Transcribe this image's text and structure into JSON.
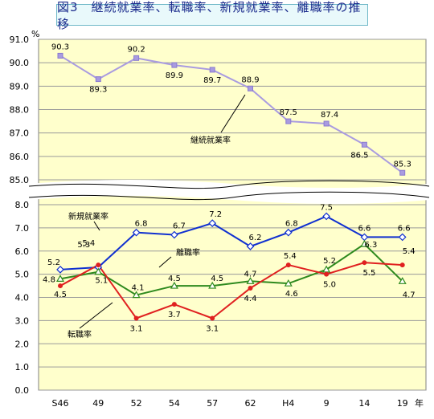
{
  "title": "図3　継続就業率、転職率、新規就業率、離職率の推移",
  "chart_data": {
    "type": "line",
    "categories": [
      "S46",
      "49",
      "52",
      "54",
      "57",
      "62",
      "H4",
      "9",
      "14",
      "19"
    ],
    "x_unit": "年",
    "y_unit": "%",
    "y_axis_break": [
      8.0,
      85.0
    ],
    "yticks_lower": [
      "0.0",
      "1.0",
      "2.0",
      "3.0",
      "4.0",
      "5.0",
      "6.0",
      "7.0",
      "8.0"
    ],
    "yticks_upper": [
      "85.0",
      "86.0",
      "87.0",
      "88.0",
      "89.0",
      "90.0",
      "91.0"
    ],
    "ylim_lower": [
      0,
      8
    ],
    "ylim_upper": [
      85,
      91
    ],
    "grid": true,
    "series": [
      {
        "name": "継続就業率",
        "color": "#a99be0",
        "marker": "square",
        "axis": "upper",
        "values": [
          90.3,
          89.3,
          90.2,
          89.9,
          89.7,
          88.9,
          87.5,
          87.4,
          86.5,
          85.3
        ]
      },
      {
        "name": "新規就業率",
        "color": "#1030d0",
        "marker": "diamond",
        "axis": "lower",
        "values": [
          5.2,
          5.3,
          6.8,
          6.7,
          7.2,
          6.2,
          6.8,
          7.5,
          6.6,
          6.6
        ]
      },
      {
        "name": "離職率",
        "color": "#2e8a1e",
        "marker": "triangle",
        "axis": "lower",
        "values": [
          4.8,
          5.1,
          4.1,
          4.5,
          4.5,
          4.7,
          4.6,
          5.2,
          6.3,
          4.7
        ]
      },
      {
        "name": "転職率",
        "color": "#e02020",
        "marker": "circle",
        "axis": "lower",
        "values": [
          4.5,
          5.4,
          3.1,
          3.7,
          3.1,
          4.4,
          5.4,
          5.0,
          5.5,
          5.4
        ]
      }
    ]
  }
}
